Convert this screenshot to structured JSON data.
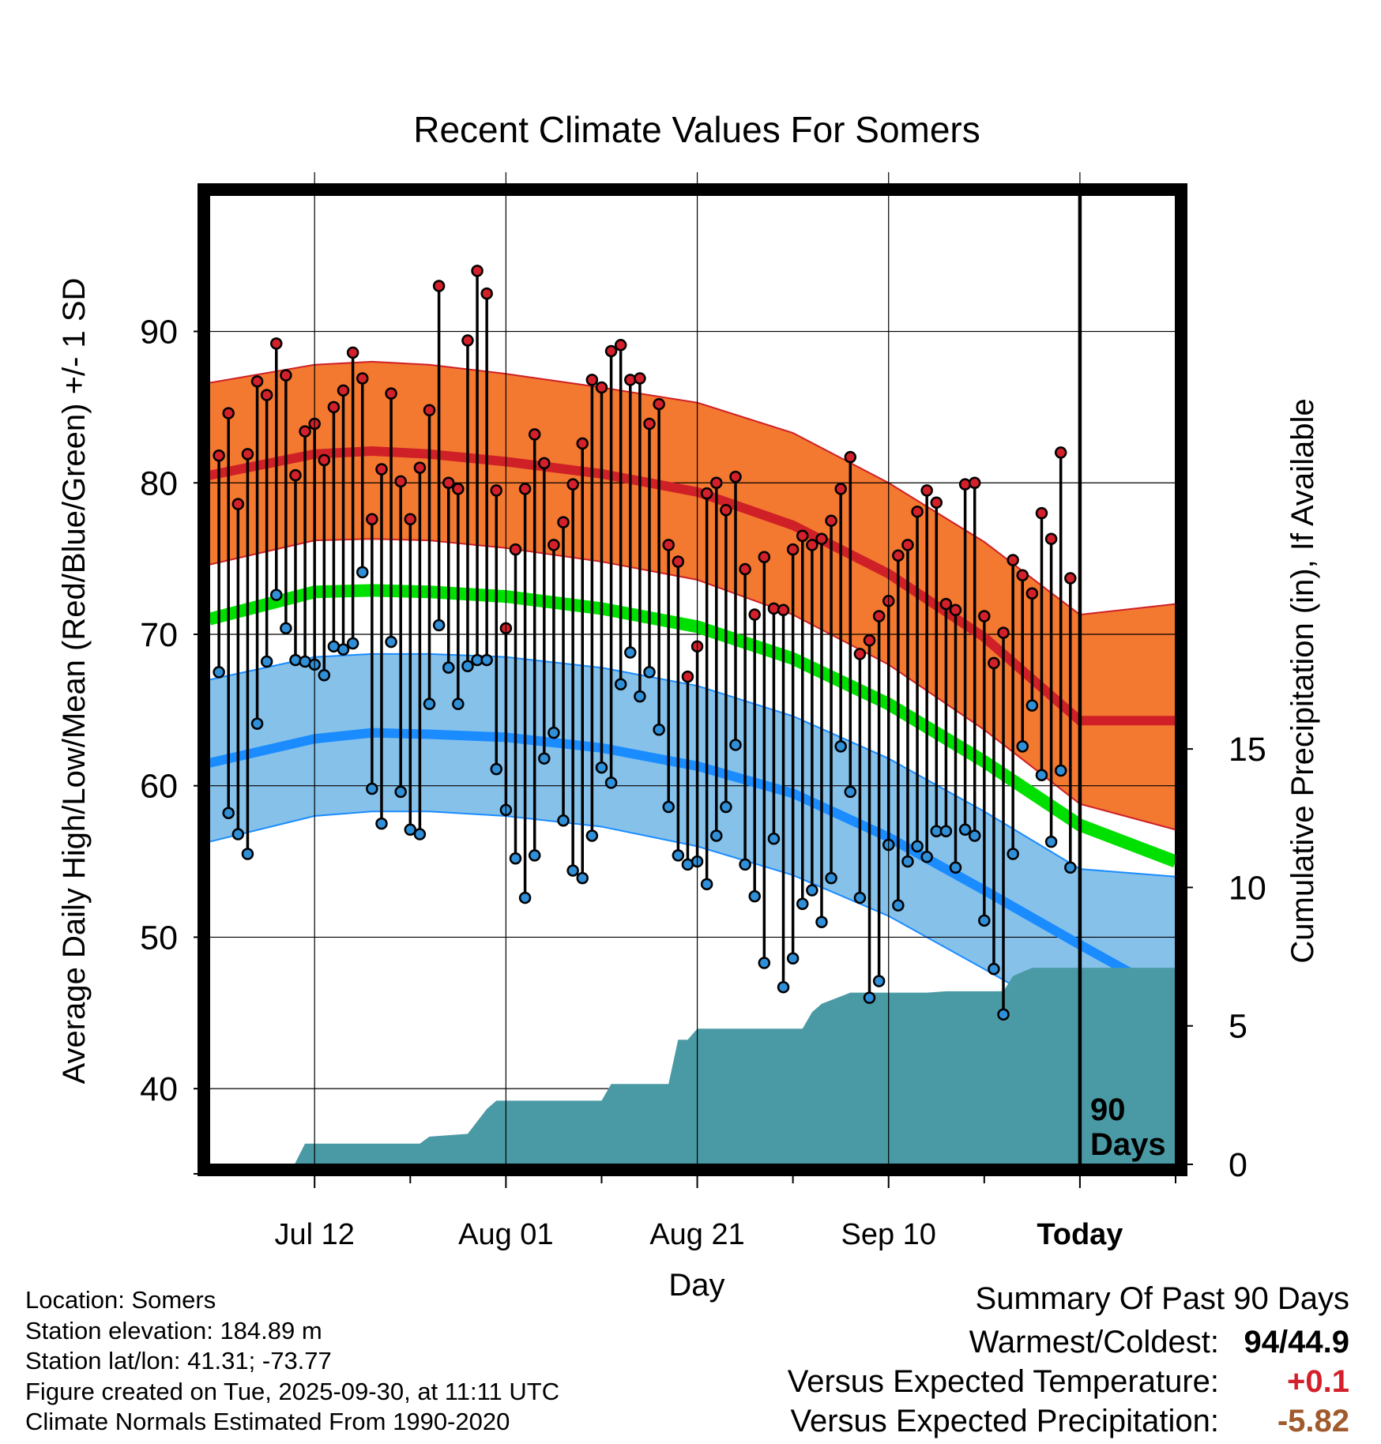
{
  "chart_data": {
    "type": "line",
    "title": "Recent Climate Values For Somers",
    "xlabel": "Day",
    "ylabel_left": "Average Daily High/Low/Mean (Red/Blue/Green) +/- 1 SD",
    "ylabel_right": "Cumulative Precipitation (in), If Available",
    "xlim": [
      -11,
      90
    ],
    "ylim_left": [
      35,
      99
    ],
    "ylim_right": [
      0,
      35
    ],
    "x_ticks": [
      {
        "x": 0,
        "label": "Jul 12"
      },
      {
        "x": 20,
        "label": "Aug 01"
      },
      {
        "x": 40,
        "label": "Aug 21"
      },
      {
        "x": 60,
        "label": "Sep 10"
      },
      {
        "x": 80,
        "label": "Today"
      }
    ],
    "y_ticks_left": [
      "40",
      "50",
      "60",
      "70",
      "80",
      "90"
    ],
    "y_ticks_right": [
      "0",
      "5",
      "10",
      "15"
    ],
    "today_marker": {
      "x": 80,
      "label_line1": "90",
      "label_line2": "Days"
    },
    "normals_x": [
      -11,
      0,
      6,
      12,
      20,
      30,
      40,
      50,
      60,
      70,
      80,
      90
    ],
    "normal_high": [
      80.5,
      81.9,
      82.1,
      81.9,
      81.4,
      80.6,
      79.4,
      77.2,
      74.0,
      69.8,
      64.3,
      64.3
    ],
    "normal_high_upper": [
      86.6,
      87.8,
      88.0,
      87.8,
      87.2,
      86.3,
      85.3,
      83.3,
      80.0,
      76.1,
      71.3,
      72.0
    ],
    "normal_high_lower": [
      74.6,
      76.2,
      76.3,
      76.2,
      75.7,
      74.8,
      73.6,
      71.3,
      68.0,
      63.7,
      58.8,
      57.1
    ],
    "normal_mean": [
      71.0,
      72.8,
      72.9,
      72.8,
      72.5,
      71.7,
      70.5,
      68.4,
      65.4,
      61.6,
      57.4,
      55.0
    ],
    "normal_low": [
      61.5,
      63.1,
      63.5,
      63.4,
      63.2,
      62.5,
      61.3,
      59.5,
      56.6,
      53.1,
      49.5,
      46.0
    ],
    "normal_low_upper": [
      67.0,
      68.5,
      68.7,
      68.7,
      68.5,
      67.8,
      66.6,
      64.6,
      61.8,
      58.3,
      54.5,
      54.0
    ],
    "normal_low_lower": [
      56.3,
      58.0,
      58.3,
      58.3,
      58.0,
      57.3,
      56.0,
      54.1,
      51.4,
      47.9,
      44.3,
      38.3
    ],
    "obs_start_x": -10,
    "obs_high": [
      81.8,
      84.6,
      78.6,
      81.9,
      86.7,
      85.8,
      89.2,
      87.1,
      80.5,
      83.4,
      83.9,
      81.5,
      85.0,
      86.1,
      88.6,
      86.9,
      77.6,
      80.9,
      85.9,
      80.1,
      77.6,
      81.0,
      84.8,
      93.0,
      80.0,
      79.6,
      89.4,
      94.0,
      92.5,
      79.5,
      70.4,
      75.6,
      79.6,
      83.2,
      81.3,
      75.9,
      77.4,
      79.9,
      82.6,
      86.8,
      86.3,
      88.7,
      89.1,
      86.8,
      86.9,
      83.9,
      85.2,
      75.9,
      74.8,
      67.2,
      69.2,
      79.3,
      80.0,
      78.2,
      80.4,
      74.3,
      71.3,
      75.1,
      71.7,
      71.6,
      75.6,
      76.5,
      75.9,
      76.3,
      77.5,
      79.6,
      81.7,
      68.7,
      69.6,
      71.2,
      72.2,
      75.2,
      75.9,
      78.1,
      79.5,
      78.7,
      72.0,
      71.6,
      79.9,
      80.0,
      71.2,
      68.1,
      70.1,
      74.9,
      73.9,
      72.7,
      78.0,
      76.3,
      82.0,
      73.7
    ],
    "obs_low": [
      67.5,
      58.2,
      56.8,
      55.5,
      64.1,
      68.2,
      72.6,
      70.4,
      68.3,
      68.2,
      68.0,
      67.3,
      69.2,
      69.0,
      69.4,
      74.1,
      59.8,
      57.5,
      69.5,
      59.6,
      57.1,
      56.8,
      65.4,
      70.6,
      67.8,
      65.4,
      67.9,
      68.3,
      68.3,
      61.1,
      58.4,
      55.2,
      52.6,
      55.4,
      61.8,
      63.5,
      57.7,
      54.4,
      53.9,
      56.7,
      61.2,
      60.2,
      66.7,
      68.8,
      65.9,
      67.5,
      63.7,
      58.6,
      55.4,
      54.8,
      55.0,
      53.5,
      56.7,
      58.6,
      62.7,
      54.8,
      52.7,
      48.3,
      56.5,
      46.7,
      48.6,
      52.2,
      53.1,
      51.0,
      53.9,
      62.6,
      59.6,
      52.6,
      46.0,
      47.1,
      56.1,
      52.1,
      55.0,
      56.0,
      55.3,
      57.0,
      57.0,
      54.6,
      57.1,
      56.7,
      51.1,
      47.9,
      44.9,
      55.5,
      62.6,
      65.3,
      60.7,
      56.3,
      61.0,
      54.6
    ],
    "precip_cumulative": [
      [
        -11,
        0
      ],
      [
        -2.1,
        0
      ],
      [
        -1,
        0.75
      ],
      [
        11,
        0.75
      ],
      [
        12,
        1.0
      ],
      [
        16,
        1.1
      ],
      [
        18,
        2.0
      ],
      [
        19,
        2.3
      ],
      [
        30,
        2.3
      ],
      [
        31,
        2.9
      ],
      [
        37,
        2.9
      ],
      [
        38,
        4.5
      ],
      [
        39,
        4.5
      ],
      [
        40,
        4.9
      ],
      [
        51,
        4.9
      ],
      [
        52,
        5.5
      ],
      [
        53,
        5.8
      ],
      [
        56,
        6.2
      ],
      [
        64,
        6.2
      ],
      [
        66,
        6.25
      ],
      [
        72,
        6.25
      ],
      [
        73,
        6.8
      ],
      [
        75,
        7.1
      ],
      [
        90,
        7.1
      ]
    ]
  },
  "info": {
    "location": "Location: Somers",
    "elevation": "Station elevation: 184.89 m",
    "latlon": "Station lat/lon: 41.31; -73.77",
    "created": "Figure created on Tue, 2025-09-30, at 11:11 UTC",
    "normals": "Climate Normals Estimated From 1990-2020"
  },
  "summary": {
    "title": "Summary Of Past 90 Days",
    "warmest_coldest_label": "Warmest/Coldest:",
    "warmest_coldest_value": "94/44.9",
    "temp_label": "Versus Expected Temperature:",
    "temp_value": "+0.1",
    "precip_label": "Versus Expected Precipitation:",
    "precip_value": "-5.82"
  },
  "colors": {
    "high_band": "#f37830",
    "high_line": "#cf2027",
    "mean_line": "#00e000",
    "low_band": "#86c1ea",
    "low_line": "#1a8cff",
    "precip": "#4a9aa5",
    "high_dot": "#d3202a",
    "low_dot": "#2f8fd8"
  }
}
